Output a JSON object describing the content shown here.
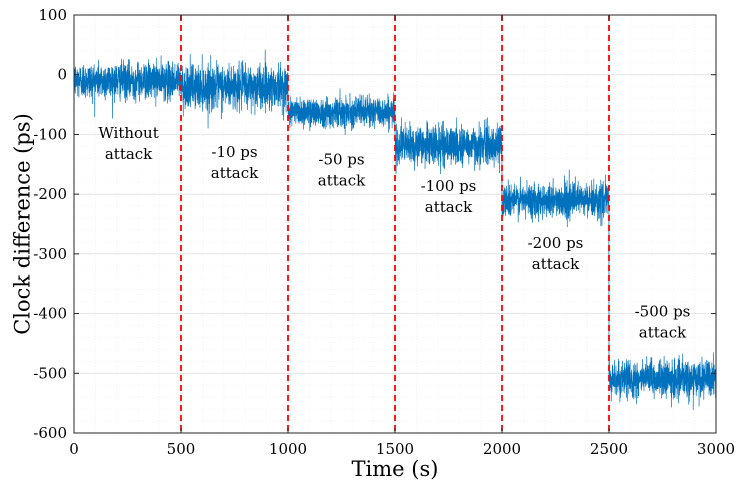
{
  "chart_data": {
    "type": "line",
    "title": "",
    "xlabel": "Time (s)",
    "ylabel": "Clock difference (ps)",
    "xlim": [
      0,
      3000
    ],
    "ylim": [
      -600,
      100
    ],
    "xticks": [
      0,
      500,
      1000,
      1500,
      2000,
      2500,
      3000
    ],
    "yticks": [
      -600,
      -500,
      -400,
      -300,
      -200,
      -100,
      0,
      100
    ],
    "grid": "on-minor",
    "series": [
      {
        "name": "Clock difference",
        "color": "#0072BD",
        "segments": [
          {
            "x_start": 0,
            "x_end": 500,
            "mean": -10,
            "noise_std": 15
          },
          {
            "x_start": 500,
            "x_end": 1000,
            "mean": -20,
            "noise_std": 18
          },
          {
            "x_start": 1000,
            "x_end": 1500,
            "mean": -62,
            "noise_std": 12
          },
          {
            "x_start": 1500,
            "x_end": 2000,
            "mean": -118,
            "noise_std": 16
          },
          {
            "x_start": 2000,
            "x_end": 2500,
            "mean": -210,
            "noise_std": 14
          },
          {
            "x_start": 2500,
            "x_end": 3000,
            "mean": -510,
            "noise_std": 15
          }
        ]
      }
    ],
    "vlines": {
      "x": [
        500,
        1000,
        1500,
        2000,
        2500
      ],
      "color": "#FF0000",
      "style": "dashed"
    },
    "annotations": [
      {
        "lines": [
          "Without",
          "attack"
        ],
        "x": 255,
        "y": -106
      },
      {
        "lines": [
          "-10 ps",
          "attack"
        ],
        "x": 750,
        "y": -138
      },
      {
        "lines": [
          "-50 ps",
          "attack"
        ],
        "x": 1250,
        "y": -150
      },
      {
        "lines": [
          "-100 ps",
          "attack"
        ],
        "x": 1750,
        "y": -195
      },
      {
        "lines": [
          "-200 ps",
          "attack"
        ],
        "x": 2250,
        "y": -290
      },
      {
        "lines": [
          "-500 ps",
          "attack"
        ],
        "x": 2750,
        "y": -405
      }
    ]
  }
}
